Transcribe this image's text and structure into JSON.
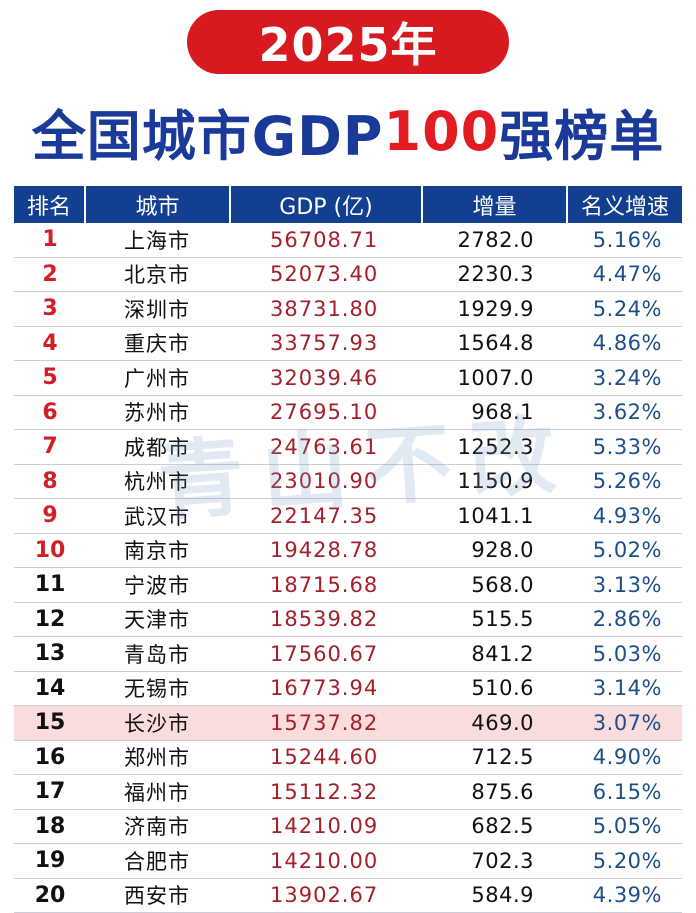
{
  "header": {
    "year": "2025年",
    "title_prefix": "全国城市GDP",
    "title_highlight": "100",
    "title_suffix": "强榜单"
  },
  "watermark": "青山不改",
  "table": {
    "columns": [
      "排名",
      "城市",
      "GDP (亿)",
      "增量",
      "名义增速"
    ],
    "rows": [
      {
        "rank": "1",
        "city": "上海市",
        "gdp": "56708.71",
        "increase": "2782.0",
        "growth": "5.16%"
      },
      {
        "rank": "2",
        "city": "北京市",
        "gdp": "52073.40",
        "increase": "2230.3",
        "growth": "4.47%"
      },
      {
        "rank": "3",
        "city": "深圳市",
        "gdp": "38731.80",
        "increase": "1929.9",
        "growth": "5.24%"
      },
      {
        "rank": "4",
        "city": "重庆市",
        "gdp": "33757.93",
        "increase": "1564.8",
        "growth": "4.86%"
      },
      {
        "rank": "5",
        "city": "广州市",
        "gdp": "32039.46",
        "increase": "1007.0",
        "growth": "3.24%"
      },
      {
        "rank": "6",
        "city": "苏州市",
        "gdp": "27695.10",
        "increase": "968.1",
        "growth": "3.62%"
      },
      {
        "rank": "7",
        "city": "成都市",
        "gdp": "24763.61",
        "increase": "1252.3",
        "growth": "5.33%"
      },
      {
        "rank": "8",
        "city": "杭州市",
        "gdp": "23010.90",
        "increase": "1150.9",
        "growth": "5.26%"
      },
      {
        "rank": "9",
        "city": "武汉市",
        "gdp": "22147.35",
        "increase": "1041.1",
        "growth": "4.93%"
      },
      {
        "rank": "10",
        "city": "南京市",
        "gdp": "19428.78",
        "increase": "928.0",
        "growth": "5.02%"
      },
      {
        "rank": "11",
        "city": "宁波市",
        "gdp": "18715.68",
        "increase": "568.0",
        "growth": "3.13%"
      },
      {
        "rank": "12",
        "city": "天津市",
        "gdp": "18539.82",
        "increase": "515.5",
        "growth": "2.86%"
      },
      {
        "rank": "13",
        "city": "青岛市",
        "gdp": "17560.67",
        "increase": "841.2",
        "growth": "5.03%"
      },
      {
        "rank": "14",
        "city": "无锡市",
        "gdp": "16773.94",
        "increase": "510.6",
        "growth": "3.14%"
      },
      {
        "rank": "15",
        "city": "长沙市",
        "gdp": "15737.82",
        "increase": "469.0",
        "growth": "3.07%"
      },
      {
        "rank": "16",
        "city": "郑州市",
        "gdp": "15244.60",
        "increase": "712.5",
        "growth": "4.90%"
      },
      {
        "rank": "17",
        "city": "福州市",
        "gdp": "15112.32",
        "increase": "875.6",
        "growth": "6.15%"
      },
      {
        "rank": "18",
        "city": "济南市",
        "gdp": "14210.09",
        "increase": "682.5",
        "growth": "5.05%"
      },
      {
        "rank": "19",
        "city": "合肥市",
        "gdp": "14210.00",
        "increase": "702.3",
        "growth": "5.20%"
      },
      {
        "rank": "20",
        "city": "西安市",
        "gdp": "13902.67",
        "increase": "584.9",
        "growth": "4.39%"
      }
    ]
  },
  "colors": {
    "year_pill": "#d71920",
    "title_blue": "#1a3a9a",
    "title_red": "#e31b23",
    "header_bg": "#123f8f",
    "rank_top_red": "#d01f26",
    "gdp_text": "#a3202a",
    "growth_text": "#1c4f8a",
    "highlight_row": "#fbdcdc"
  }
}
